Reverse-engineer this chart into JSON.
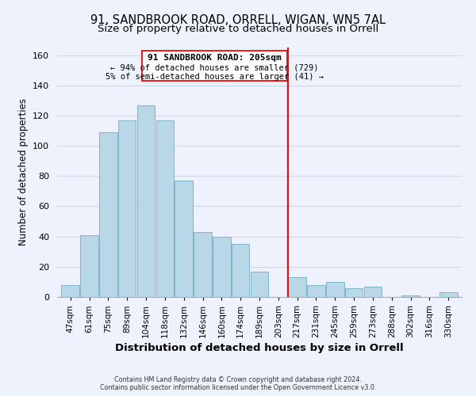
{
  "title": "91, SANDBROOK ROAD, ORRELL, WIGAN, WN5 7AL",
  "subtitle": "Size of property relative to detached houses in Orrell",
  "xlabel": "Distribution of detached houses by size in Orrell",
  "ylabel": "Number of detached properties",
  "bar_labels": [
    "47sqm",
    "61sqm",
    "75sqm",
    "89sqm",
    "104sqm",
    "118sqm",
    "132sqm",
    "146sqm",
    "160sqm",
    "174sqm",
    "189sqm",
    "203sqm",
    "217sqm",
    "231sqm",
    "245sqm",
    "259sqm",
    "273sqm",
    "288sqm",
    "302sqm",
    "316sqm",
    "330sqm"
  ],
  "bar_values": [
    8,
    41,
    109,
    117,
    127,
    117,
    77,
    43,
    40,
    35,
    17,
    0,
    13,
    8,
    10,
    6,
    7,
    0,
    1,
    0,
    3
  ],
  "bar_color": "#b8d8e8",
  "bar_edge_color": "#7ab5d0",
  "vline_color": "red",
  "annotation_title": "91 SANDBROOK ROAD: 205sqm",
  "annotation_line1": "← 94% of detached houses are smaller (729)",
  "annotation_line2": "5% of semi-detached houses are larger (41) →",
  "footer1": "Contains HM Land Registry data © Crown copyright and database right 2024.",
  "footer2": "Contains public sector information licensed under the Open Government Licence v3.0.",
  "ylim": [
    0,
    165
  ],
  "background_color": "#eef2fc",
  "grid_color": "#d0d8e8",
  "title_fontsize": 10.5,
  "subtitle_fontsize": 9.5,
  "ylabel_fontsize": 8.5,
  "xlabel_fontsize": 9.5
}
